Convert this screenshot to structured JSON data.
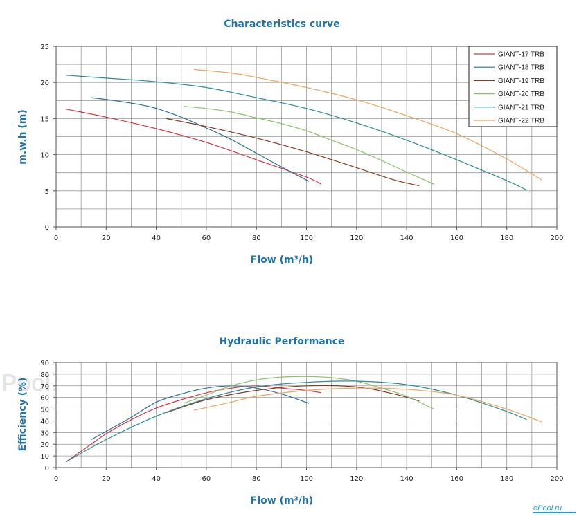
{
  "watermark_text": "ePool.ru",
  "logo_text": "ePool.ru",
  "chart_data": [
    {
      "type": "line",
      "title": "Characteristics curve",
      "xlabel": "Flow (m³/h)",
      "ylabel": "m.w.h (m)",
      "xlim": [
        0,
        200
      ],
      "ylim": [
        0,
        25
      ],
      "xticks": [
        0,
        20,
        40,
        60,
        80,
        100,
        120,
        140,
        160,
        180,
        200
      ],
      "yticks": [
        0,
        5,
        10,
        15,
        20,
        25
      ],
      "grid": true,
      "legend_position": "top-right",
      "series": [
        {
          "name": "GIANT-17 TRB",
          "color": "#d9373b",
          "points": [
            [
              4,
              16.3
            ],
            [
              20,
              15.2
            ],
            [
              40,
              13.6
            ],
            [
              60,
              11.7
            ],
            [
              80,
              9.3
            ],
            [
              100,
              6.9
            ],
            [
              106,
              5.9
            ]
          ]
        },
        {
          "name": "GIANT-18 TRB",
          "color": "#2a6f9e",
          "points": [
            [
              14,
              17.9
            ],
            [
              25,
              17.4
            ],
            [
              38,
              16.6
            ],
            [
              50,
              15.2
            ],
            [
              60,
              13.7
            ],
            [
              70,
              12.1
            ],
            [
              80,
              10.2
            ],
            [
              90,
              8.3
            ],
            [
              101,
              6.3
            ]
          ]
        },
        {
          "name": "GIANT-19 TRB",
          "color": "#8b3a22",
          "points": [
            [
              44,
              15.0
            ],
            [
              60,
              13.9
            ],
            [
              80,
              12.3
            ],
            [
              100,
              10.4
            ],
            [
              120,
              8.2
            ],
            [
              135,
              6.5
            ],
            [
              145,
              5.7
            ]
          ]
        },
        {
          "name": "GIANT-20 TRB",
          "color": "#86c46a",
          "points": [
            [
              51,
              16.7
            ],
            [
              60,
              16.4
            ],
            [
              70,
              15.9
            ],
            [
              80,
              15.1
            ],
            [
              90,
              14.3
            ],
            [
              100,
              13.3
            ],
            [
              110,
              12.0
            ],
            [
              120,
              10.7
            ],
            [
              130,
              9.2
            ],
            [
              140,
              7.6
            ],
            [
              151,
              5.9
            ]
          ]
        },
        {
          "name": "GIANT-21 TRB",
          "color": "#2a8c9e",
          "points": [
            [
              4,
              21.0
            ],
            [
              20,
              20.6
            ],
            [
              40,
              20.1
            ],
            [
              60,
              19.3
            ],
            [
              80,
              17.9
            ],
            [
              100,
              16.4
            ],
            [
              120,
              14.4
            ],
            [
              140,
              12.0
            ],
            [
              160,
              9.3
            ],
            [
              180,
              6.4
            ],
            [
              188,
              5.1
            ]
          ]
        },
        {
          "name": "GIANT-22 TRB",
          "color": "#f0a25e",
          "points": [
            [
              55,
              21.8
            ],
            [
              70,
              21.3
            ],
            [
              80,
              20.7
            ],
            [
              100,
              19.3
            ],
            [
              120,
              17.6
            ],
            [
              140,
              15.4
            ],
            [
              160,
              12.9
            ],
            [
              180,
              9.4
            ],
            [
              194,
              6.5
            ]
          ]
        }
      ]
    },
    {
      "type": "line",
      "title": "Hydraulic Performance",
      "xlabel": "Flow (m³/h)",
      "ylabel": "Efficiency (%)",
      "xlim": [
        0,
        200
      ],
      "ylim": [
        0,
        90
      ],
      "xticks": [
        0,
        20,
        40,
        60,
        80,
        100,
        120,
        140,
        160,
        180,
        200
      ],
      "yticks": [
        0,
        10,
        20,
        30,
        40,
        50,
        60,
        70,
        80,
        90
      ],
      "grid": true,
      "series": [
        {
          "name": "GIANT-17 TRB",
          "color": "#d9373b",
          "points": [
            [
              4,
              5.0
            ],
            [
              14,
              20.0
            ],
            [
              20,
              29.0
            ],
            [
              30,
              41.0
            ],
            [
              40,
              51.0
            ],
            [
              50,
              58.0
            ],
            [
              60,
              64.0
            ],
            [
              70,
              68.0
            ],
            [
              80,
              70.0
            ],
            [
              90,
              68.0
            ],
            [
              100,
              66.0
            ],
            [
              106,
              64.0
            ]
          ]
        },
        {
          "name": "GIANT-18 TRB",
          "color": "#2a6f9e",
          "points": [
            [
              14,
              24.0
            ],
            [
              20,
              31.0
            ],
            [
              30,
              43.0
            ],
            [
              40,
              56.0
            ],
            [
              50,
              63.0
            ],
            [
              60,
              68.0
            ],
            [
              70,
              70.0
            ],
            [
              80,
              68.0
            ],
            [
              90,
              63.0
            ],
            [
              101,
              55.0
            ]
          ]
        },
        {
          "name": "GIANT-19 TRB",
          "color": "#8b3a22",
          "points": [
            [
              44,
              47.0
            ],
            [
              60,
              58.0
            ],
            [
              80,
              66.0
            ],
            [
              100,
              70.0
            ],
            [
              120,
              69.0
            ],
            [
              135,
              63.0
            ],
            [
              145,
              57.0
            ]
          ]
        },
        {
          "name": "GIANT-20 TRB",
          "color": "#86c46a",
          "points": [
            [
              51,
              55.0
            ],
            [
              60,
              62.0
            ],
            [
              70,
              70.0
            ],
            [
              80,
              75.0
            ],
            [
              90,
              77.5
            ],
            [
              100,
              78.0
            ],
            [
              110,
              77.0
            ],
            [
              120,
              74.0
            ],
            [
              130,
              68.0
            ],
            [
              140,
              61.0
            ],
            [
              151,
              50.0
            ]
          ]
        },
        {
          "name": "GIANT-21 TRB",
          "color": "#2a8c9e",
          "points": [
            [
              4,
              5.0
            ],
            [
              20,
              24.0
            ],
            [
              40,
              44.0
            ],
            [
              60,
              59.0
            ],
            [
              80,
              69.0
            ],
            [
              100,
              73.0
            ],
            [
              120,
              74.0
            ],
            [
              140,
              71.0
            ],
            [
              160,
              62.0
            ],
            [
              180,
              48.0
            ],
            [
              188,
              41.0
            ]
          ]
        },
        {
          "name": "GIANT-22 TRB",
          "color": "#f0a25e",
          "points": [
            [
              55,
              49.0
            ],
            [
              70,
              56.0
            ],
            [
              80,
              61.0
            ],
            [
              100,
              66.0
            ],
            [
              120,
              68.0
            ],
            [
              140,
              67.0
            ],
            [
              160,
              62.0
            ],
            [
              180,
              50.0
            ],
            [
              194,
              39.0
            ]
          ]
        }
      ]
    }
  ]
}
